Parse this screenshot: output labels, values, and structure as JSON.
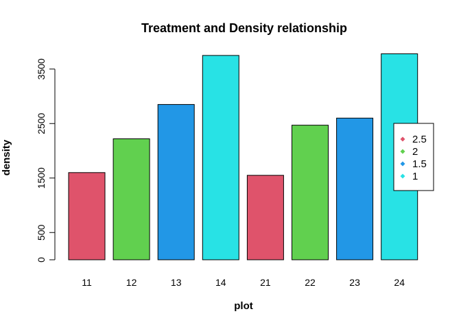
{
  "chart_data": {
    "type": "bar",
    "title": "Treatment and Density relationship",
    "xlabel": "plot",
    "ylabel": "density",
    "categories": [
      "11",
      "12",
      "13",
      "14",
      "21",
      "22",
      "23",
      "24"
    ],
    "values": [
      1600,
      2220,
      2850,
      3750,
      1550,
      2470,
      2600,
      3780
    ],
    "bar_colors": [
      "#DF536B",
      "#61D04F",
      "#2297E6",
      "#28E2E5",
      "#DF536B",
      "#61D04F",
      "#2297E6",
      "#28E2E5"
    ],
    "yticks": [
      0,
      500,
      1500,
      2500,
      3500
    ],
    "ylim": [
      0,
      3800
    ],
    "grid": false,
    "legend": {
      "position": "right",
      "entries": [
        {
          "label": "2.5",
          "color": "#DF536B"
        },
        {
          "label": "2",
          "color": "#61D04F"
        },
        {
          "label": "1.5",
          "color": "#2297E6"
        },
        {
          "label": "1",
          "color": "#28E2E5"
        }
      ]
    }
  }
}
